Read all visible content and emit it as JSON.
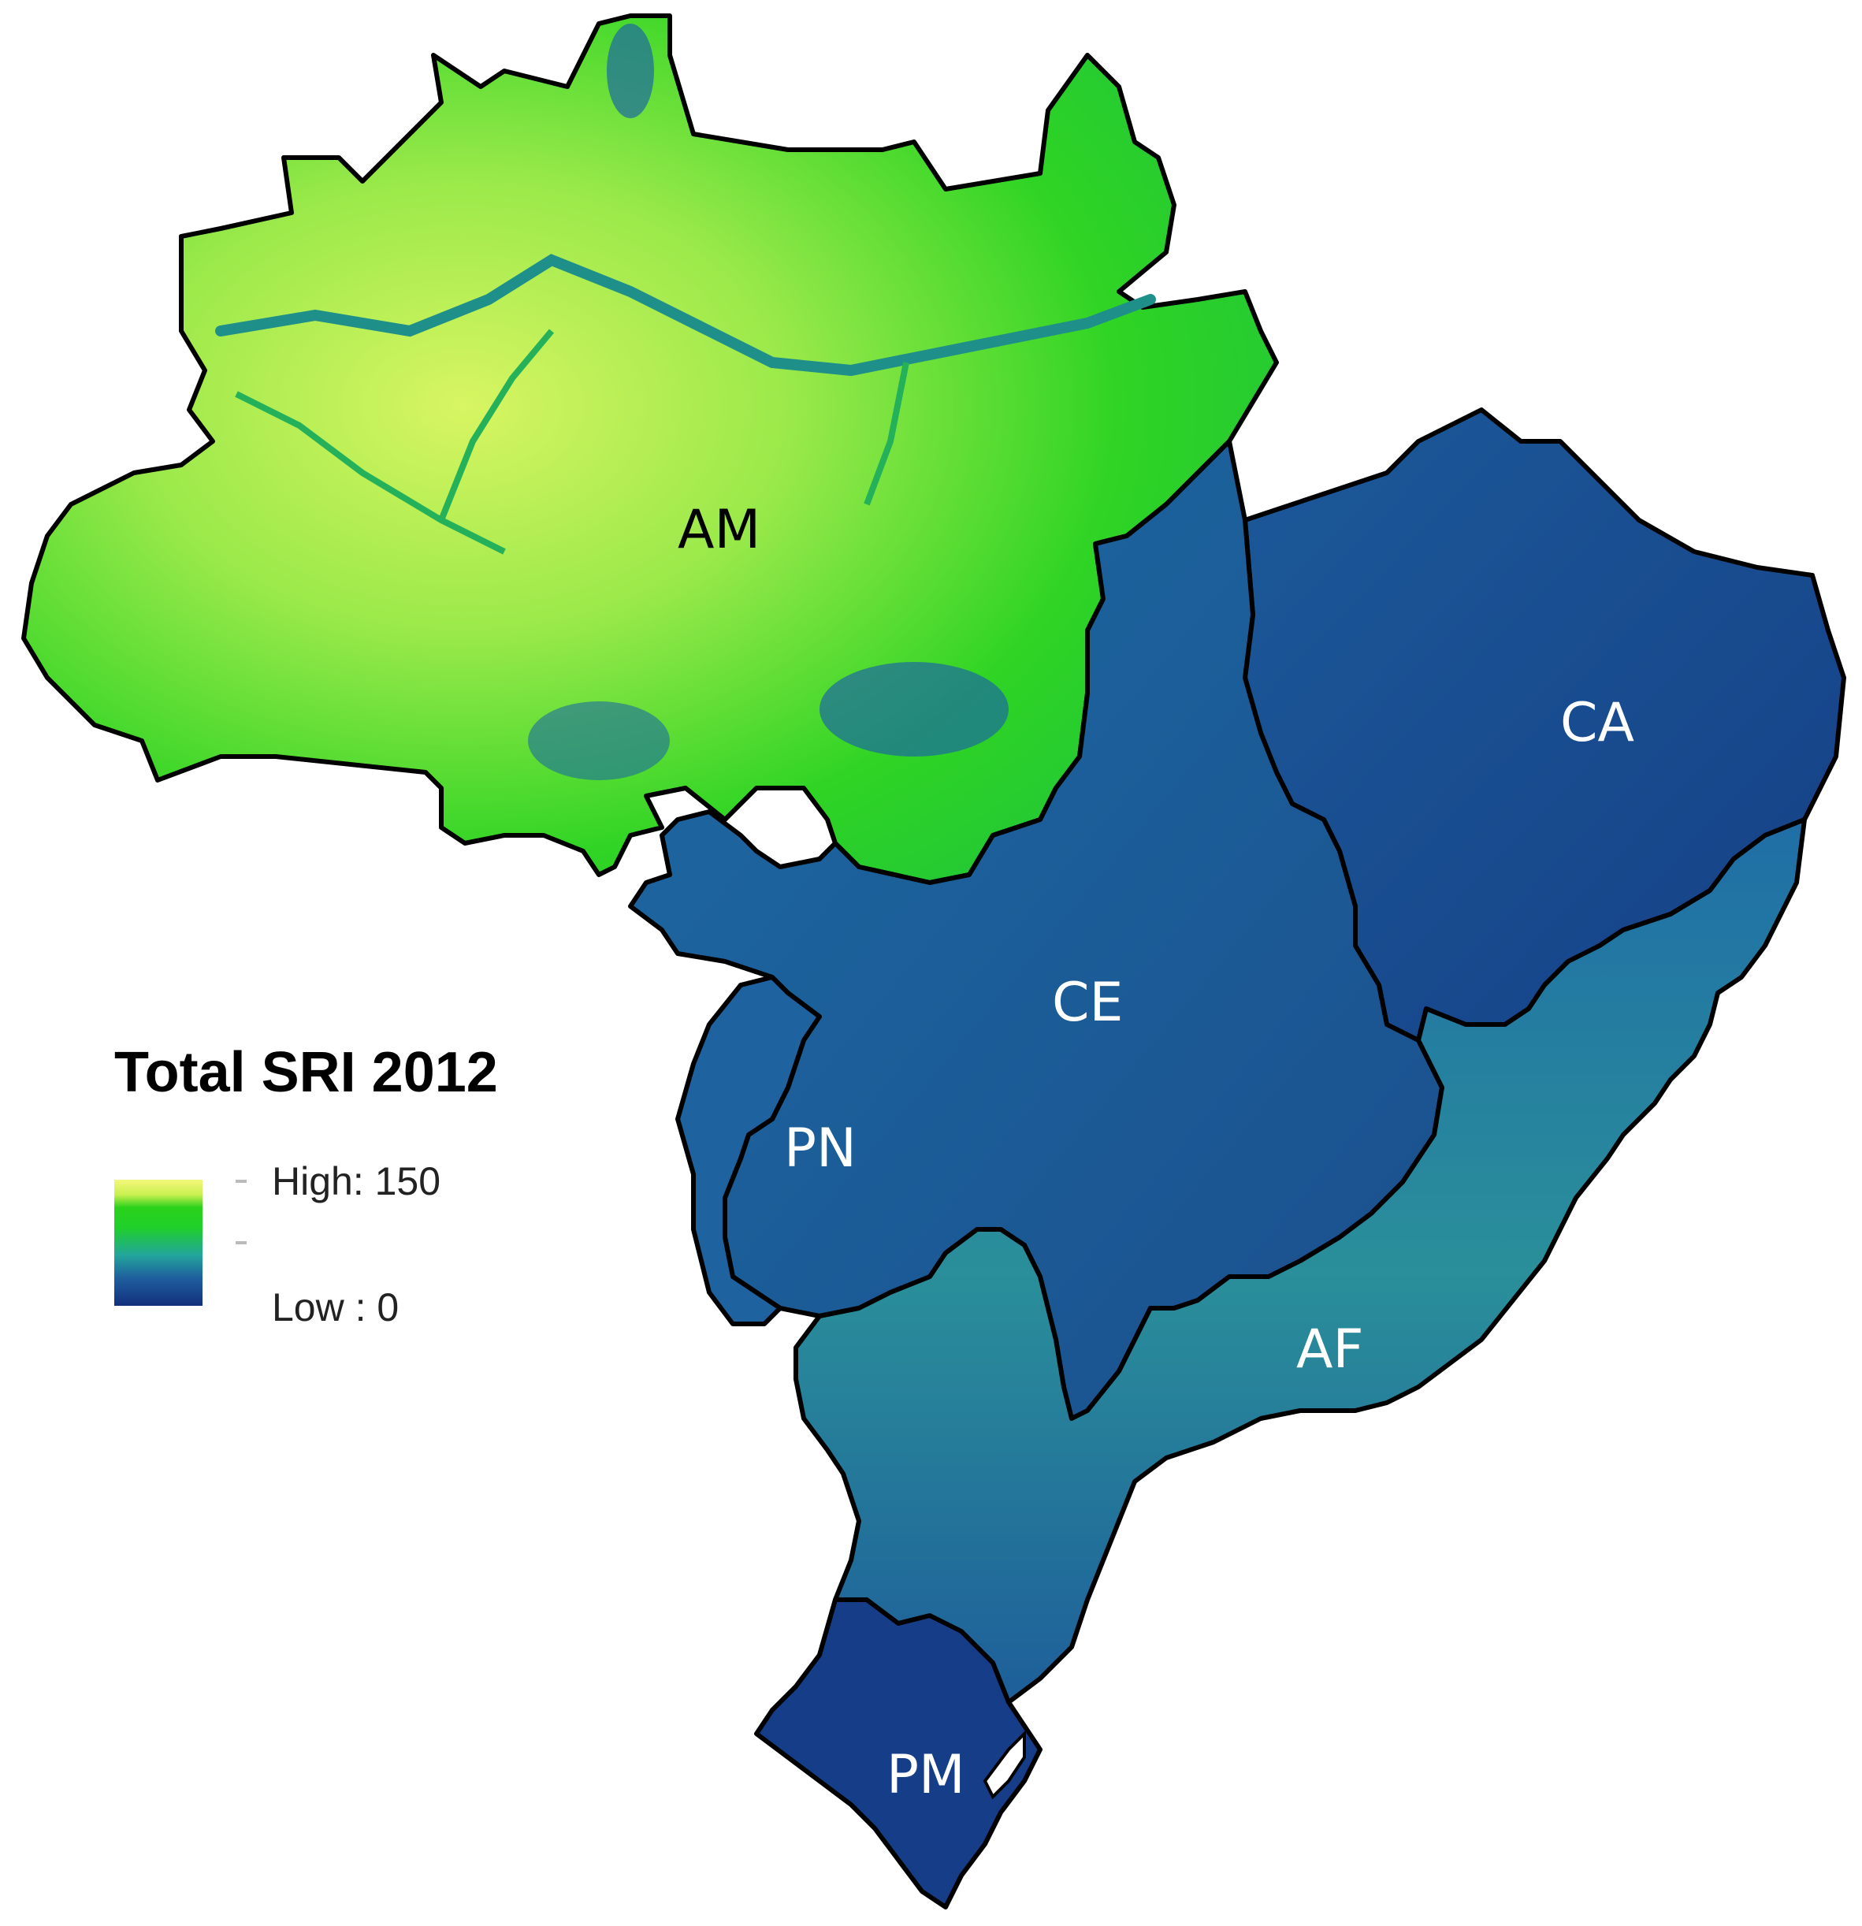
{
  "legend": {
    "title": "Total SRI 2012",
    "high_label": "High: 150",
    "low_label": "Low : 0",
    "color_ramp": [
      "#f4f77a",
      "#c8f050",
      "#2bd21b",
      "#22a59c",
      "#1f5e9e",
      "#12307c"
    ]
  },
  "biomes": {
    "AM": "AM",
    "CE": "CE",
    "CA": "CA",
    "PN": "PN",
    "AF": "AF",
    "PM": "PM"
  },
  "colors": {
    "high": "#f4f77a",
    "mid": "#2bd21b",
    "low": "#12307c",
    "border": "#000000"
  }
}
